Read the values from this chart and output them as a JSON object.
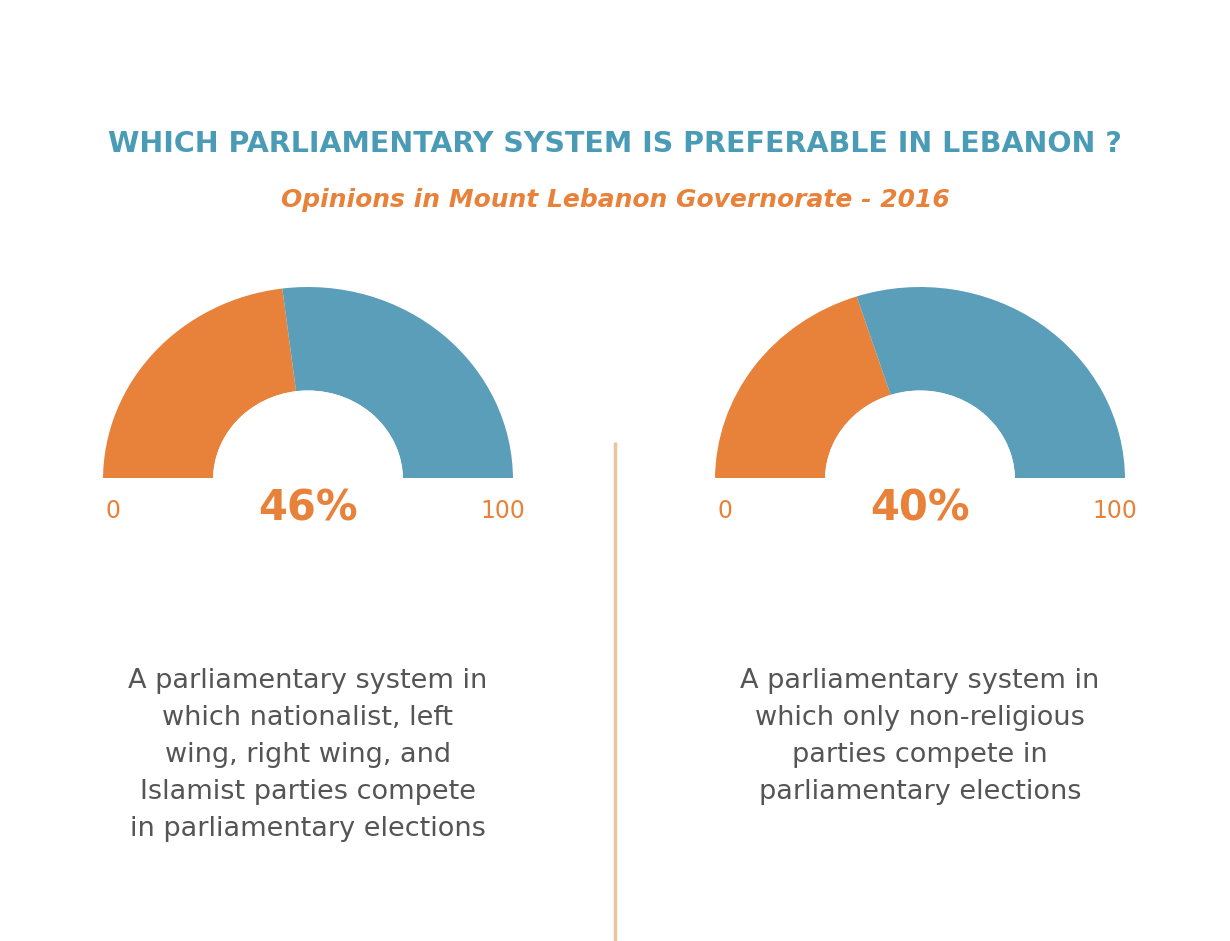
{
  "title_main": "WHICH PARLIAMENTARY SYSTEM IS PREFERABLE IN LEBANON ?",
  "title_sub": "Opinions in Mount Lebanon Governorate - 2016",
  "title_main_color": "#4a9bb5",
  "title_sub_color": "#e8823a",
  "bg_color": "#ffffff",
  "header_bar_color": "#5b9eb9",
  "accent_bar_color": "#e8c4a0",
  "orange_color": "#e8823a",
  "blue_color": "#5b9eb9",
  "chart1_value": 46,
  "chart2_value": 40,
  "chart1_label": "46%",
  "chart2_label": "40%",
  "chart1_text": "A parliamentary system in\nwhich nationalist, left\nwing, right wing, and\nIslamist parties compete\nin parliamentary elections",
  "chart2_text": "A parliamentary system in\nwhich only non-religious\nparties compete in\nparliamentary elections",
  "axis_label_0": "0",
  "axis_label_100": "100",
  "divider_color": "#e8c4a0",
  "text_color": "#555555"
}
